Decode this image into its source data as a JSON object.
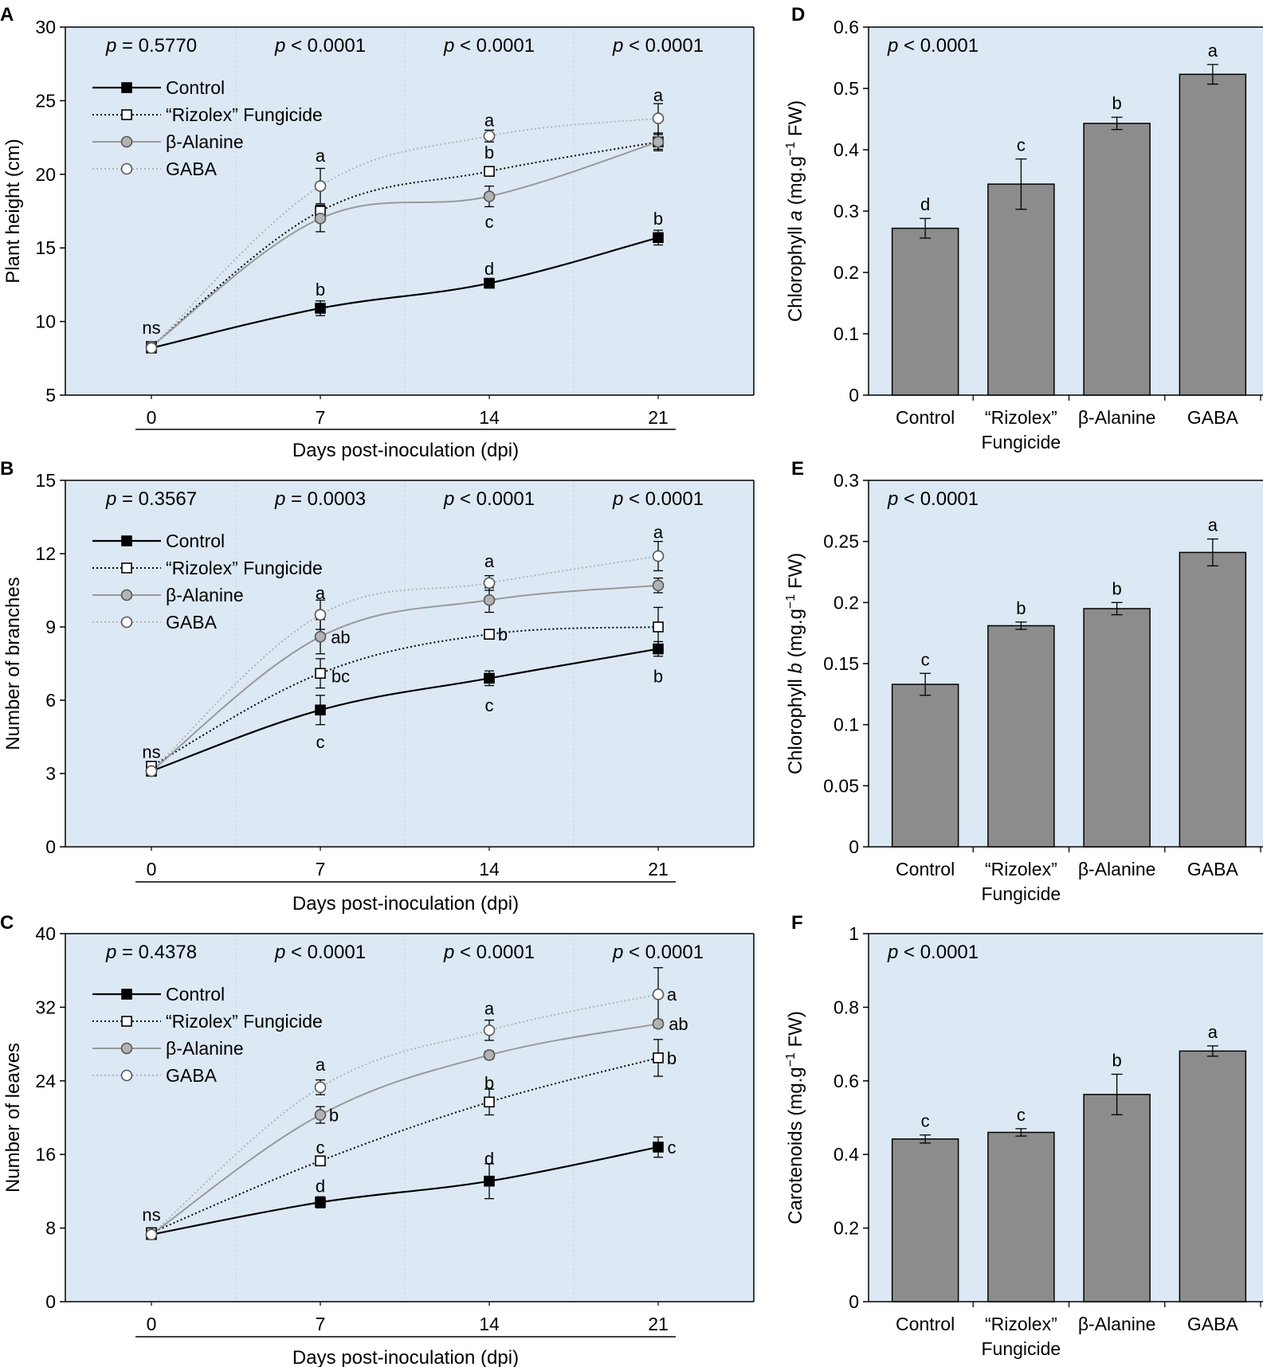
{
  "figure": {
    "colors": {
      "panel_bg": "#dce9f5",
      "bar_fill": "#8c8c8c",
      "control": "#000000",
      "rizolex": "#000000",
      "alanine": "#999999",
      "gaba": "#b3b3b3",
      "alanine_marker": "#b3b3b3"
    },
    "legend": [
      "Control",
      "“Rizolex” Fungicide",
      "β-Alanine",
      "GABA"
    ]
  },
  "chart_data": [
    {
      "id": "A",
      "letter": "A",
      "type": "line",
      "ylabel": "Plant height (cm)",
      "xlabel": "Days post-inoculation (dpi)",
      "ylim": [
        5,
        30
      ],
      "yticks": [
        5,
        10,
        15,
        20,
        25,
        30
      ],
      "categories": [
        "0",
        "7",
        "14",
        "21"
      ],
      "p_values": [
        "= 0.5770",
        "< 0.0001",
        "< 0.0001",
        "< 0.0001"
      ],
      "series": [
        {
          "name": "Control",
          "values": [
            8.2,
            10.9,
            12.6,
            15.7
          ],
          "errors": [
            0.3,
            0.5,
            0.3,
            0.5
          ]
        },
        {
          "name": "“Rizolex” Fungicide",
          "values": [
            8.3,
            17.5,
            20.2,
            22.2
          ],
          "errors": [
            0.3,
            0.4,
            0.2,
            0.5
          ]
        },
        {
          "name": "β-Alanine",
          "values": [
            8.3,
            17.0,
            18.5,
            22.2
          ],
          "errors": [
            0.3,
            0.9,
            0.7,
            0.6
          ]
        },
        {
          "name": "GABA",
          "values": [
            8.2,
            19.2,
            22.6,
            23.8
          ],
          "errors": [
            0.3,
            1.2,
            0.4,
            1.0
          ]
        }
      ],
      "annotations": [
        {
          "text": "ns",
          "x": 0,
          "y": 9.6
        },
        {
          "text": "b",
          "x": 1,
          "y": 12.2
        },
        {
          "text": "a",
          "x": 1,
          "y": 21.3
        },
        {
          "text": "d",
          "x": 2,
          "y": 13.6
        },
        {
          "text": "a",
          "x": 2,
          "y": 23.7
        },
        {
          "text": "b",
          "x": 2,
          "y": 21.5
        },
        {
          "text": "c",
          "x": 2,
          "y": 16.8
        },
        {
          "text": "b",
          "x": 3,
          "y": 17.0
        },
        {
          "text": "a",
          "x": 3,
          "y": 25.4
        }
      ]
    },
    {
      "id": "B",
      "letter": "B",
      "type": "line",
      "ylabel": "Number of branches",
      "xlabel": "Days post-inoculation (dpi)",
      "ylim": [
        0,
        15
      ],
      "yticks": [
        0,
        3,
        6,
        9,
        12,
        15
      ],
      "categories": [
        "0",
        "7",
        "14",
        "21"
      ],
      "p_values": [
        "= 0.3567",
        "= 0.0003",
        "< 0.0001",
        "< 0.0001"
      ],
      "series": [
        {
          "name": "Control",
          "values": [
            3.1,
            5.6,
            6.9,
            8.1
          ],
          "errors": [
            0.2,
            0.6,
            0.3,
            0.3
          ]
        },
        {
          "name": "“Rizolex” Fungicide",
          "values": [
            3.3,
            7.1,
            8.7,
            9.0
          ],
          "errors": [
            0.2,
            0.6,
            0.1,
            0.8
          ]
        },
        {
          "name": "β-Alanine",
          "values": [
            3.1,
            8.6,
            10.1,
            10.7
          ],
          "errors": [
            0.2,
            0.7,
            0.5,
            0.3
          ]
        },
        {
          "name": "GABA",
          "values": [
            3.1,
            9.5,
            10.8,
            11.9
          ],
          "errors": [
            0.2,
            0.6,
            0.3,
            0.6
          ]
        }
      ],
      "annotations": [
        {
          "text": "ns",
          "x": 0,
          "y": 3.9
        },
        {
          "text": "a",
          "x": 1,
          "y": 10.4
        },
        {
          "text": "ab",
          "x": 1.12,
          "y": 8.6
        },
        {
          "text": "bc",
          "x": 1.12,
          "y": 7.0
        },
        {
          "text": "c",
          "x": 1,
          "y": 4.3
        },
        {
          "text": "a",
          "x": 2,
          "y": 11.7
        },
        {
          "text": "b",
          "x": 2.08,
          "y": 8.7
        },
        {
          "text": "c",
          "x": 2,
          "y": 5.8
        },
        {
          "text": "a",
          "x": 3,
          "y": 12.9
        },
        {
          "text": "b",
          "x": 3,
          "y": 7.0
        }
      ]
    },
    {
      "id": "C",
      "letter": "C",
      "type": "line",
      "ylabel": "Number of leaves",
      "xlabel": "Days post-inoculation (dpi)",
      "ylim": [
        0,
        40
      ],
      "yticks": [
        0,
        8,
        16,
        24,
        32,
        40
      ],
      "categories": [
        "0",
        "7",
        "14",
        "21"
      ],
      "p_values": [
        "= 0.4378",
        "< 0.0001",
        "< 0.0001",
        "< 0.0001"
      ],
      "series": [
        {
          "name": "Control",
          "values": [
            7.3,
            10.8,
            13.1,
            16.8
          ],
          "errors": [
            0.3,
            0.6,
            1.9,
            1.1
          ]
        },
        {
          "name": "“Rizolex” Fungicide",
          "values": [
            7.5,
            15.3,
            21.7,
            26.5
          ],
          "errors": [
            0.3,
            0.3,
            1.4,
            2.0
          ]
        },
        {
          "name": "β-Alanine",
          "values": [
            7.3,
            20.3,
            26.8,
            30.2
          ],
          "errors": [
            0.3,
            0.9,
            0.4,
            0.4
          ]
        },
        {
          "name": "GABA",
          "values": [
            7.3,
            23.3,
            29.5,
            33.4
          ],
          "errors": [
            0.3,
            0.8,
            1.1,
            2.9
          ]
        }
      ],
      "annotations": [
        {
          "text": "ns",
          "x": 0,
          "y": 9.5
        },
        {
          "text": "d",
          "x": 1,
          "y": 12.6
        },
        {
          "text": "c",
          "x": 1,
          "y": 16.8
        },
        {
          "text": "b",
          "x": 1.08,
          "y": 20.3
        },
        {
          "text": "a",
          "x": 1,
          "y": 25.8
        },
        {
          "text": "d",
          "x": 2,
          "y": 15.6
        },
        {
          "text": "b",
          "x": 2,
          "y": 23.8
        },
        {
          "text": "a",
          "x": 2,
          "y": 31.9
        },
        {
          "text": "c",
          "x": 3.08,
          "y": 16.8
        },
        {
          "text": "b",
          "x": 3.08,
          "y": 26.5
        },
        {
          "text": "ab",
          "x": 3.12,
          "y": 30.2
        },
        {
          "text": "a",
          "x": 3.08,
          "y": 33.4
        }
      ]
    },
    {
      "id": "D",
      "letter": "D",
      "type": "bar",
      "ylabel_pre": "Chlorophyll ",
      "ylabel_italic": "a",
      "ylabel_post": " (mg.g",
      "ylabel_sup": "−1",
      "ylabel_end": " FW)",
      "ylim": [
        0,
        0.6
      ],
      "yticks": [
        "0",
        "0.1",
        "0.2",
        "0.3",
        "0.4",
        "0.5",
        "0.6"
      ],
      "categories": [
        [
          "Control"
        ],
        [
          "“Rizolex”",
          "Fungicide"
        ],
        [
          "β-Alanine"
        ],
        [
          "GABA"
        ]
      ],
      "p_value": "< 0.0001",
      "values": [
        0.272,
        0.344,
        0.443,
        0.523
      ],
      "errors": [
        0.016,
        0.041,
        0.01,
        0.016
      ],
      "letters": [
        "d",
        "c",
        "b",
        "a"
      ]
    },
    {
      "id": "E",
      "letter": "E",
      "type": "bar",
      "ylabel_pre": "Chlorophyll ",
      "ylabel_italic": "b",
      "ylabel_post": " (mg.g",
      "ylabel_sup": "−1",
      "ylabel_end": " FW)",
      "ylim": [
        0,
        0.3
      ],
      "yticks": [
        "0",
        "0.05",
        "0.1",
        "0.15",
        "0.2",
        "0.25",
        "0.3"
      ],
      "categories": [
        [
          "Control"
        ],
        [
          "“Rizolex”",
          "Fungicide"
        ],
        [
          "β-Alanine"
        ],
        [
          "GABA"
        ]
      ],
      "p_value": "< 0.0001",
      "values": [
        0.133,
        0.181,
        0.195,
        0.241
      ],
      "errors": [
        0.009,
        0.003,
        0.005,
        0.011
      ],
      "letters": [
        "c",
        "b",
        "b",
        "a"
      ]
    },
    {
      "id": "F",
      "letter": "F",
      "type": "bar",
      "ylabel_pre": "Carotenoids (mg.g",
      "ylabel_italic": "",
      "ylabel_post": "",
      "ylabel_sup": "−1",
      "ylabel_end": " FW)",
      "ylim": [
        0,
        1
      ],
      "yticks": [
        "0",
        "0.2",
        "0.4",
        "0.6",
        "0.8",
        "1"
      ],
      "categories": [
        [
          "Control"
        ],
        [
          "“Rizolex”",
          "Fungicide"
        ],
        [
          "β-Alanine"
        ],
        [
          "GABA"
        ]
      ],
      "p_value": "< 0.0001",
      "values": [
        0.442,
        0.46,
        0.563,
        0.681
      ],
      "errors": [
        0.011,
        0.01,
        0.055,
        0.014
      ],
      "letters": [
        "c",
        "c",
        "b",
        "a"
      ]
    }
  ]
}
